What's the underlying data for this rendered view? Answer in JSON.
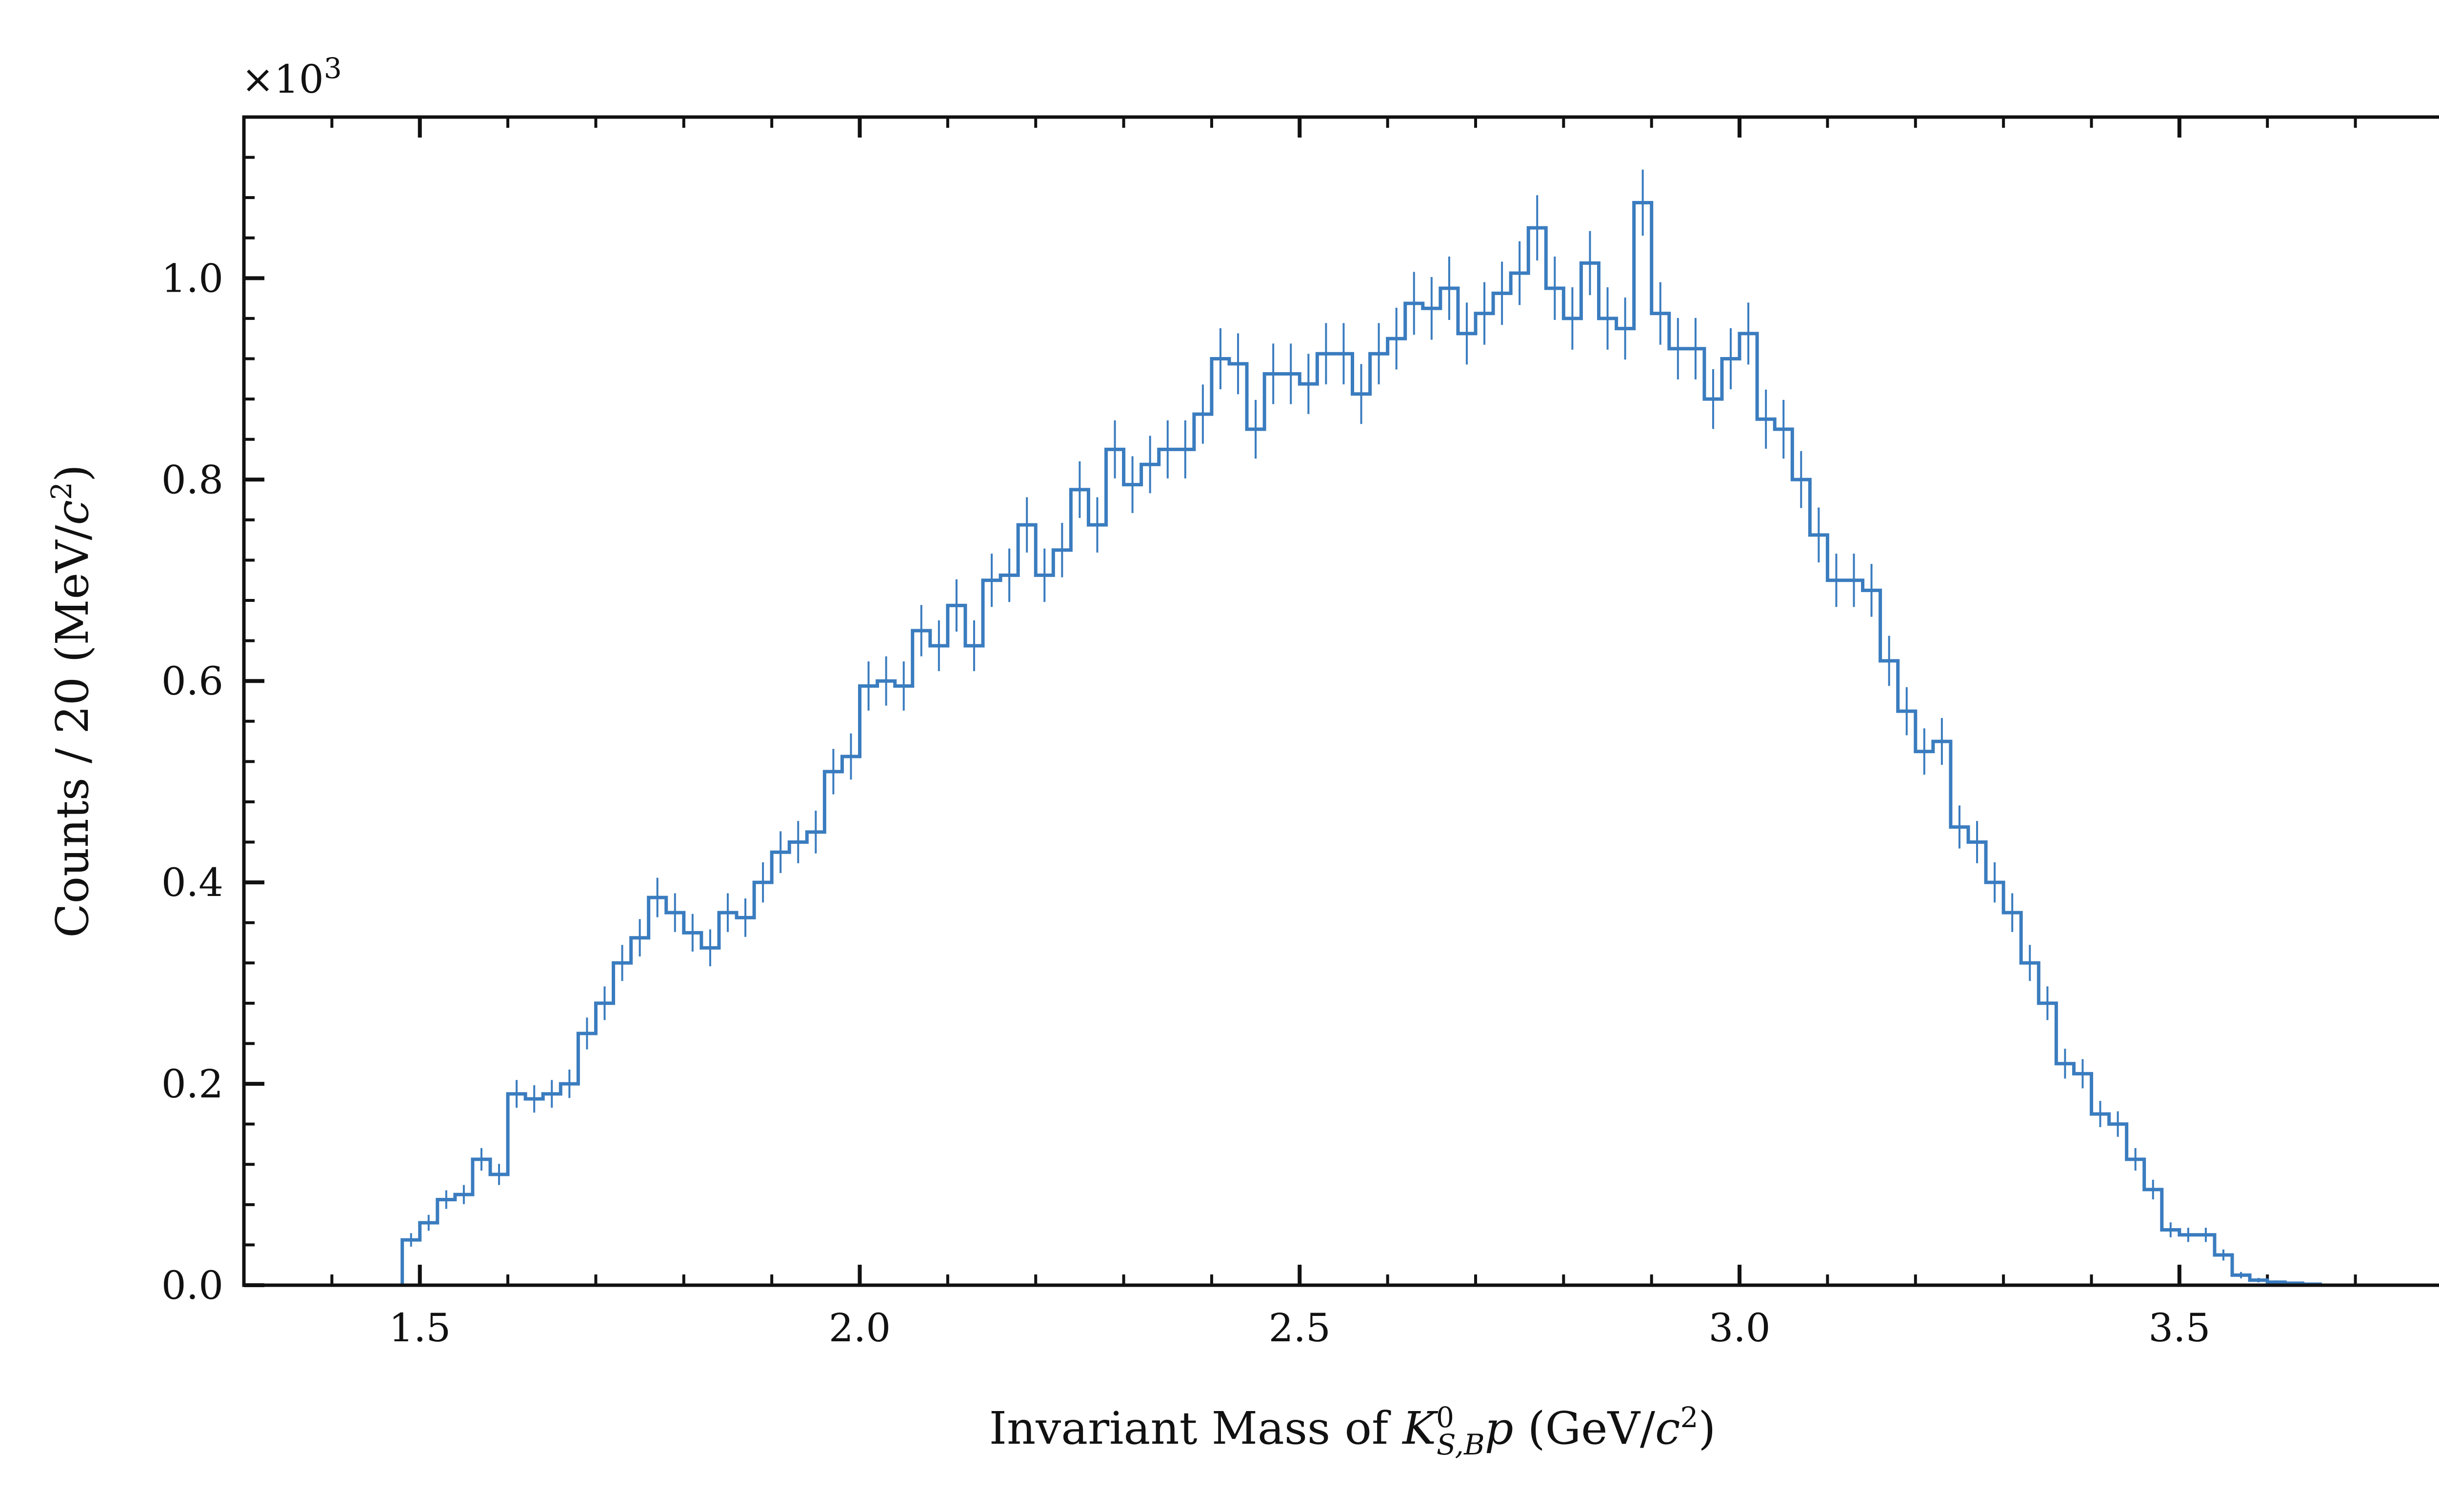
{
  "chart_data": {
    "type": "histogram",
    "series_color": "#3a7cbf",
    "bin_width": 0.02,
    "x_first_bin_low_edge": 1.48,
    "xlim": [
      1.3,
      3.82
    ],
    "ylim": [
      0,
      1.16
    ],
    "y_scale_note_prefix": "×10",
    "y_scale_note_exp": "3",
    "xticks": [
      "1.5",
      "2.0",
      "2.5",
      "3.0",
      "3.5"
    ],
    "yticks": [
      "0.0",
      "0.2",
      "0.4",
      "0.6",
      "0.8",
      "1.0"
    ],
    "xlabel": {
      "prefix": "Invariant Mass of ",
      "symbol": "K",
      "sup": "0",
      "sub": "S,B",
      "particle": "p",
      "unit_open": " (GeV/",
      "unit_c": "c",
      "unit_exp": "2",
      "unit_close": ")"
    },
    "ylabel": {
      "prefix": "Counts / 20 (MeV/",
      "unit_c": "c",
      "unit_exp": "2",
      "unit_close": ")"
    },
    "values": [
      0.045,
      0.062,
      0.085,
      0.09,
      0.125,
      0.11,
      0.19,
      0.185,
      0.19,
      0.2,
      0.25,
      0.28,
      0.32,
      0.345,
      0.385,
      0.37,
      0.35,
      0.335,
      0.37,
      0.365,
      0.4,
      0.43,
      0.44,
      0.45,
      0.51,
      0.525,
      0.595,
      0.6,
      0.595,
      0.65,
      0.635,
      0.675,
      0.635,
      0.7,
      0.705,
      0.755,
      0.705,
      0.73,
      0.79,
      0.755,
      0.83,
      0.795,
      0.815,
      0.83,
      0.83,
      0.865,
      0.92,
      0.915,
      0.85,
      0.905,
      0.905,
      0.895,
      0.925,
      0.925,
      0.885,
      0.925,
      0.94,
      0.975,
      0.97,
      0.99,
      0.945,
      0.965,
      0.985,
      1.005,
      1.05,
      0.99,
      0.96,
      1.015,
      0.96,
      0.95,
      1.075,
      0.965,
      0.93,
      0.93,
      0.88,
      0.92,
      0.945,
      0.86,
      0.85,
      0.8,
      0.745,
      0.7,
      0.7,
      0.69,
      0.62,
      0.57,
      0.53,
      0.54,
      0.455,
      0.44,
      0.4,
      0.37,
      0.32,
      0.28,
      0.22,
      0.21,
      0.17,
      0.16,
      0.125,
      0.095,
      0.055,
      0.05,
      0.05,
      0.03,
      0.01,
      0.005,
      0.003,
      0.002,
      0.001,
      0.0
    ]
  }
}
